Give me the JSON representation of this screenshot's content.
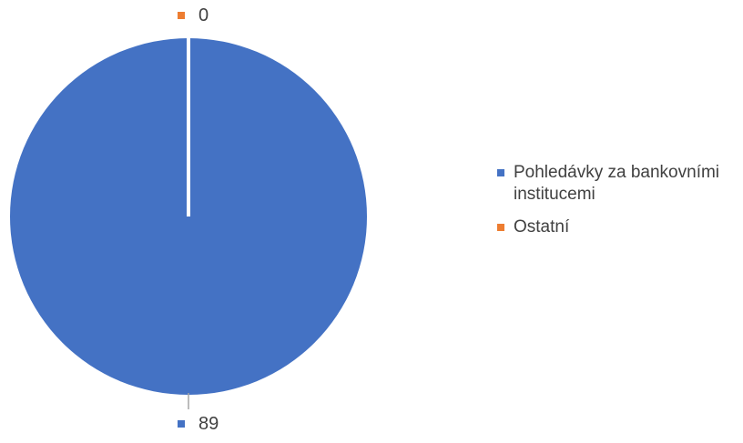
{
  "chart_data": {
    "type": "pie",
    "title": "",
    "categories": [
      "Pohledávky za bankovními institucemi",
      "Ostatní"
    ],
    "values": [
      89,
      0
    ],
    "data_labels": [
      "89",
      "0"
    ],
    "colors": [
      "#4472C4",
      "#ED7D31"
    ],
    "legend": {
      "position": "right",
      "entries": [
        "Pohledávky za bankovními institucemi",
        "Ostatní"
      ]
    }
  }
}
